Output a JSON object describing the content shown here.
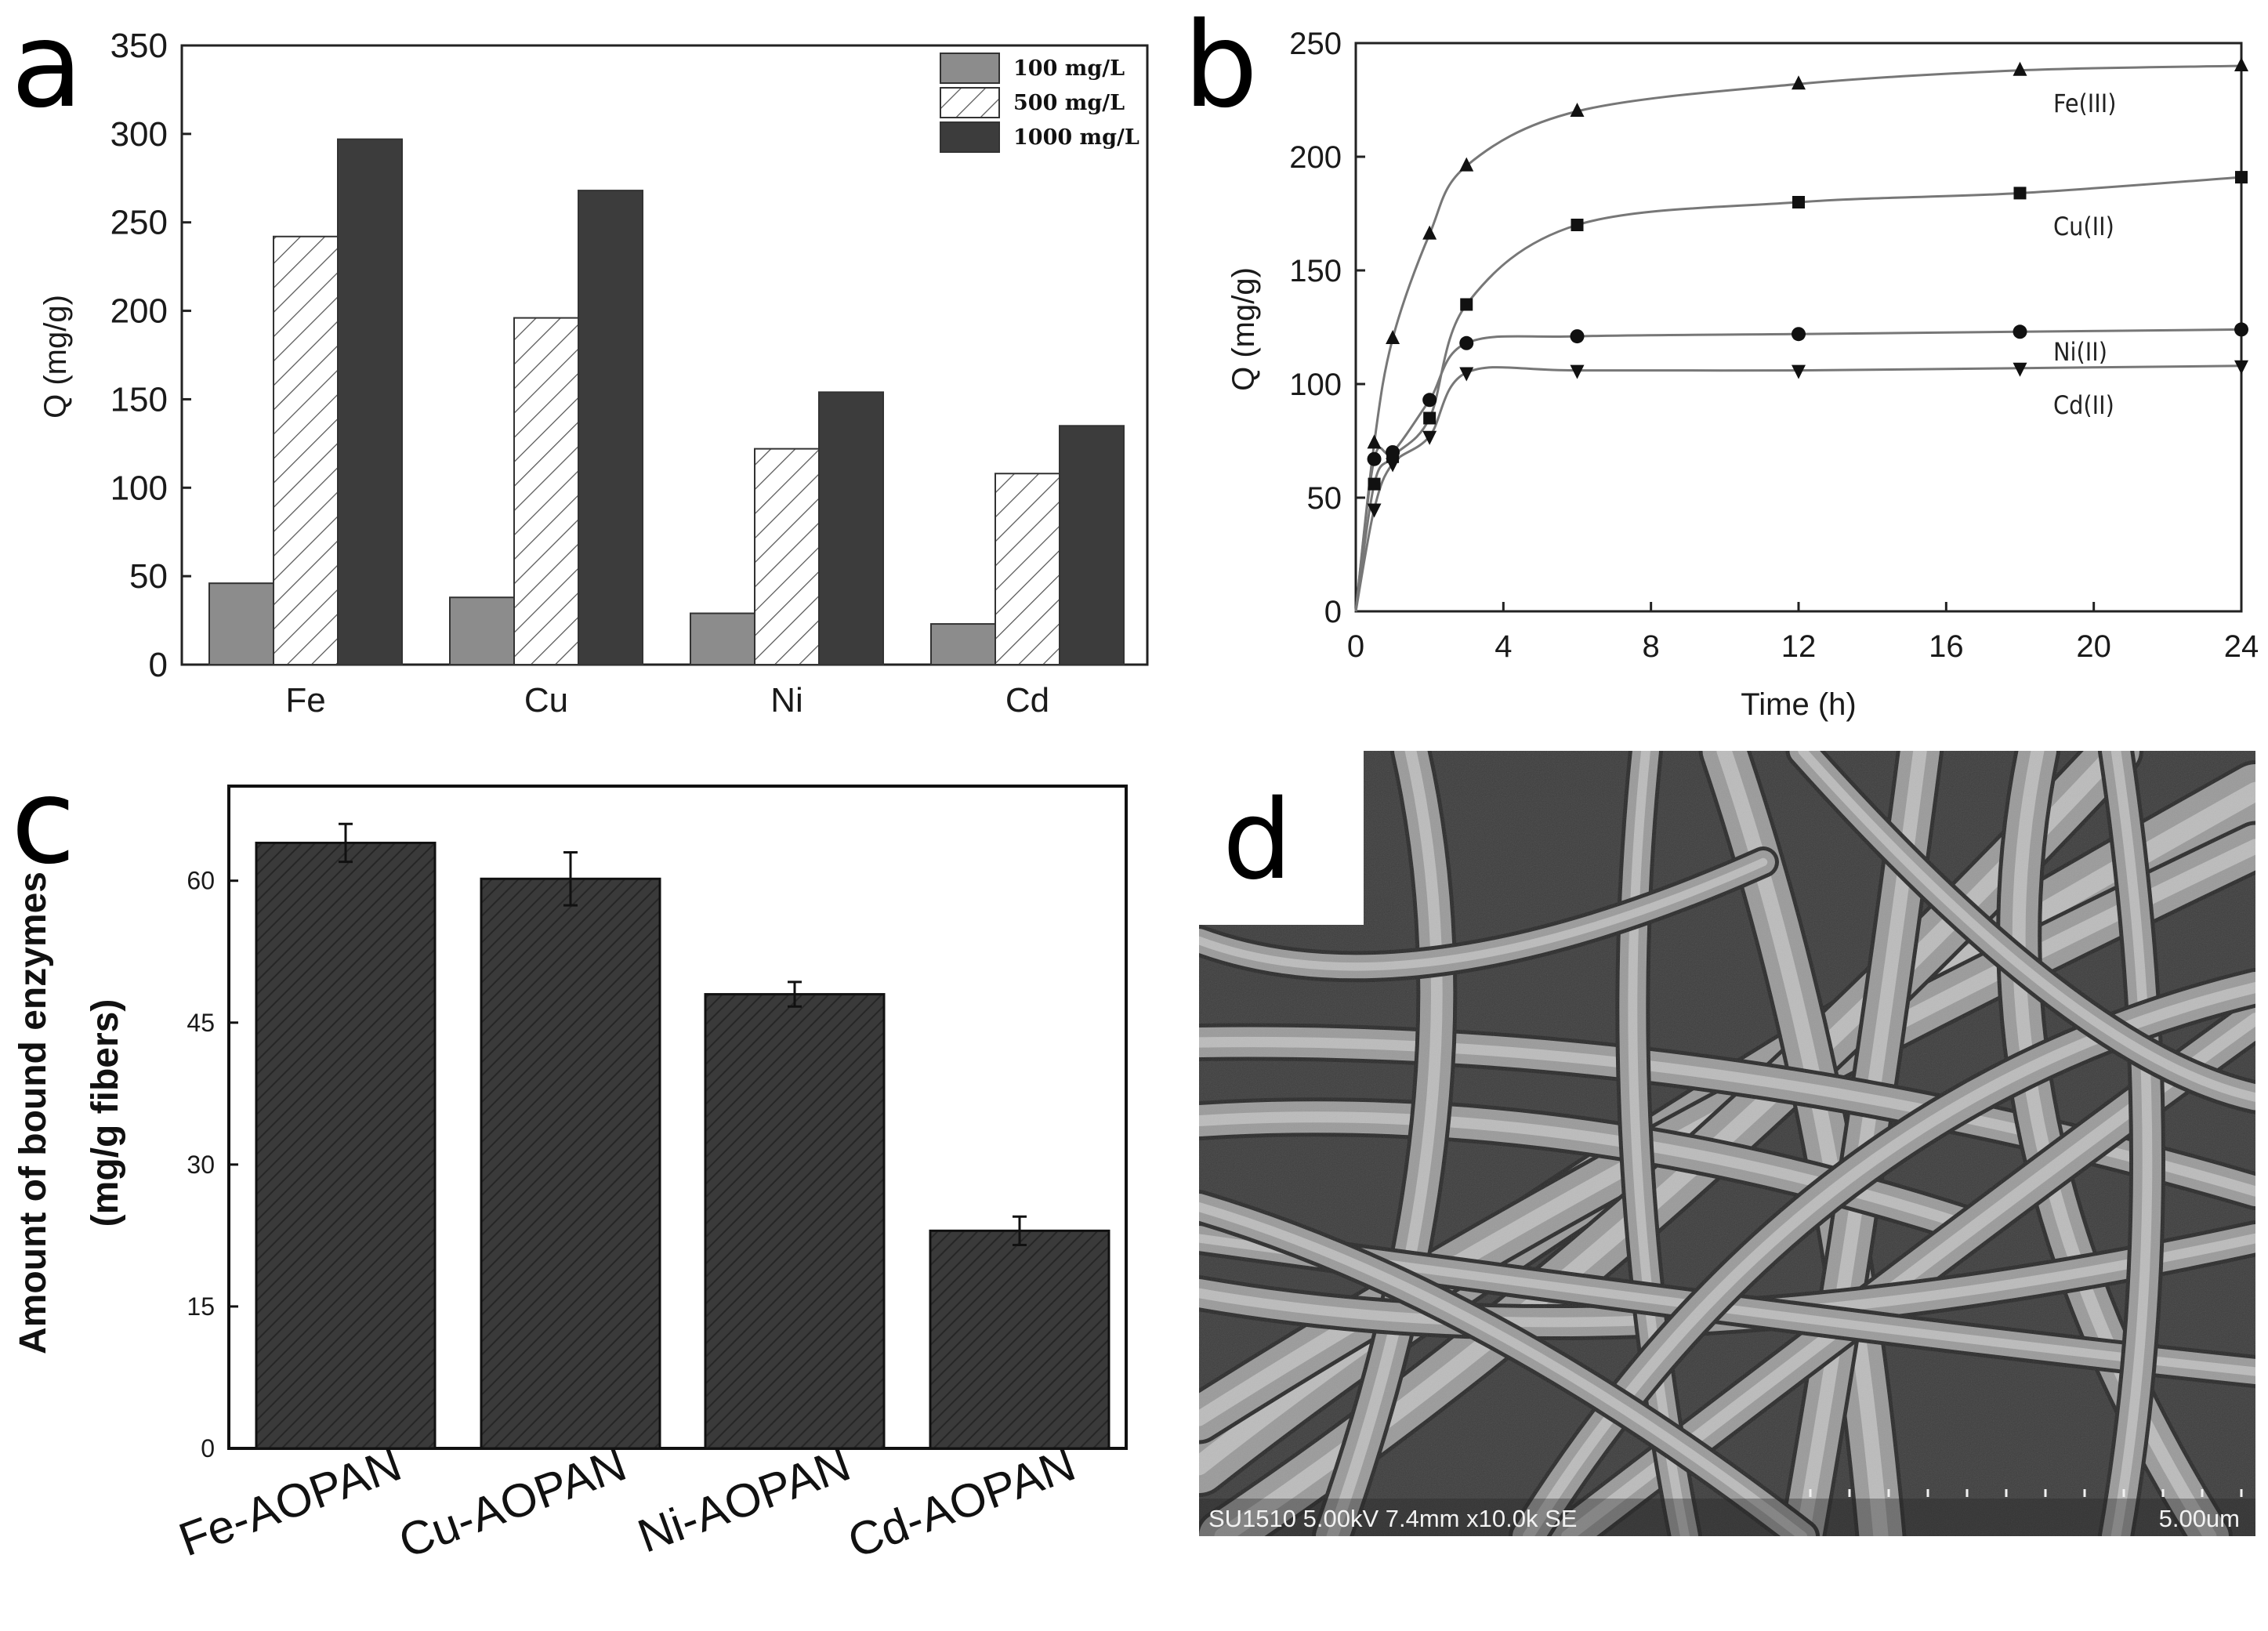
{
  "panels": {
    "a": "a",
    "b": "b",
    "c": "c",
    "d": "d"
  },
  "chart_data": [
    {
      "panel": "a",
      "type": "bar",
      "ylabel": "Q (mg/g)",
      "xlabel": "",
      "ylim": [
        0,
        350
      ],
      "yticks": [
        "0",
        "50",
        "100",
        "150",
        "200",
        "250",
        "300",
        "350"
      ],
      "categories": [
        "Fe",
        "Cu",
        "Ni",
        "Cd"
      ],
      "legend_position": "top-right",
      "series": [
        {
          "name": "100 mg/L",
          "values": [
            46,
            38,
            29,
            23
          ],
          "color": "#8c8c8c"
        },
        {
          "name": "500 mg/L",
          "values": [
            242,
            196,
            122,
            108
          ],
          "color": "#ffffff",
          "pattern": "hatch"
        },
        {
          "name": "1000 mg/L",
          "values": [
            297,
            268,
            154,
            135
          ],
          "color": "#3c3c3c"
        }
      ]
    },
    {
      "panel": "b",
      "type": "scatter",
      "xlabel": "Time (h)",
      "ylabel": "Q (mg/g)",
      "xlim": [
        0,
        24
      ],
      "ylim": [
        0,
        250
      ],
      "xticks": [
        "0",
        "4",
        "8",
        "12",
        "16",
        "20",
        "24"
      ],
      "yticks": [
        "0",
        "50",
        "100",
        "150",
        "200",
        "250"
      ],
      "series": [
        {
          "name": "Fe(III)",
          "marker": "triangle-up",
          "x": [
            0,
            0.5,
            1,
            2,
            3,
            6,
            12,
            18,
            24
          ],
          "y": [
            0,
            74,
            120,
            166,
            196,
            220,
            232,
            238,
            240
          ]
        },
        {
          "name": "Cu(II)",
          "marker": "square",
          "x": [
            0,
            0.5,
            1,
            2,
            3,
            6,
            12,
            18,
            24
          ],
          "y": [
            0,
            56,
            68,
            85,
            135,
            170,
            180,
            184,
            191
          ]
        },
        {
          "name": "Ni(II)",
          "marker": "circle",
          "x": [
            0,
            0.5,
            1,
            2,
            3,
            6,
            12,
            18,
            24
          ],
          "y": [
            0,
            67,
            70,
            93,
            118,
            121,
            122,
            123,
            124
          ]
        },
        {
          "name": "Cd(II)",
          "marker": "triangle-down",
          "x": [
            0,
            0.5,
            1,
            2,
            3,
            6,
            12,
            18,
            24
          ],
          "y": [
            0,
            45,
            65,
            77,
            105,
            106,
            106,
            107,
            108
          ]
        }
      ]
    },
    {
      "panel": "c",
      "type": "bar",
      "ylabel_line1": "Amount of bound enzymes",
      "ylabel_line2": "(mg/g fibers)",
      "xlabel": "",
      "ylim": [
        0,
        70
      ],
      "yticks": [
        "0",
        "15",
        "30",
        "45",
        "60"
      ],
      "categories": [
        "Fe-AOPAN",
        "Cu-AOPAN",
        "Ni-AOPAN",
        "Cd-AOPAN"
      ],
      "values": [
        64,
        60.2,
        48,
        23
      ],
      "errors": [
        2,
        2.8,
        1.3,
        1.5
      ],
      "bar_color": "#3a3a3a"
    }
  ],
  "sem_image": {
    "panel": "d",
    "caption": "SU1510 5.00kV 7.4mm x10.0k SE",
    "scale_bar": "5.00um"
  }
}
